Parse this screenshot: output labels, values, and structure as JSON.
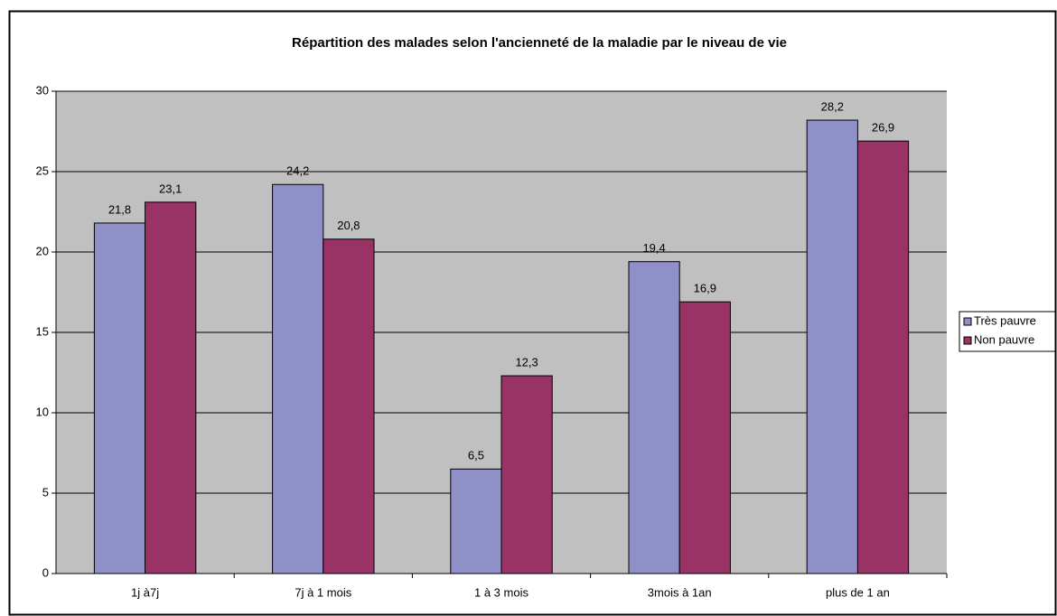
{
  "chart_data": {
    "type": "bar",
    "title": "Répartition des malades selon l'ancienneté de la maladie par le niveau de vie",
    "categories": [
      "1j à7j",
      "7j à 1 mois",
      "1  à 3 mois",
      "3mois à 1an",
      "plus de 1 an"
    ],
    "series": [
      {
        "name": "Très pauvre",
        "color": "#9090c8",
        "values": [
          21.8,
          24.2,
          6.5,
          19.4,
          28.2
        ],
        "value_labels": [
          "21,8",
          "24,2",
          "6,5",
          "19,4",
          "28,2"
        ]
      },
      {
        "name": "Non pauvre",
        "color": "#993366",
        "values": [
          23.1,
          20.8,
          12.3,
          16.9,
          26.9
        ],
        "value_labels": [
          "23,1",
          "20,8",
          "12,3",
          "16,9",
          "26,9"
        ]
      }
    ],
    "ylim": [
      0,
      30
    ],
    "yticks": [
      0,
      5,
      10,
      15,
      20,
      25,
      30
    ],
    "grid": true,
    "legend": "right"
  }
}
